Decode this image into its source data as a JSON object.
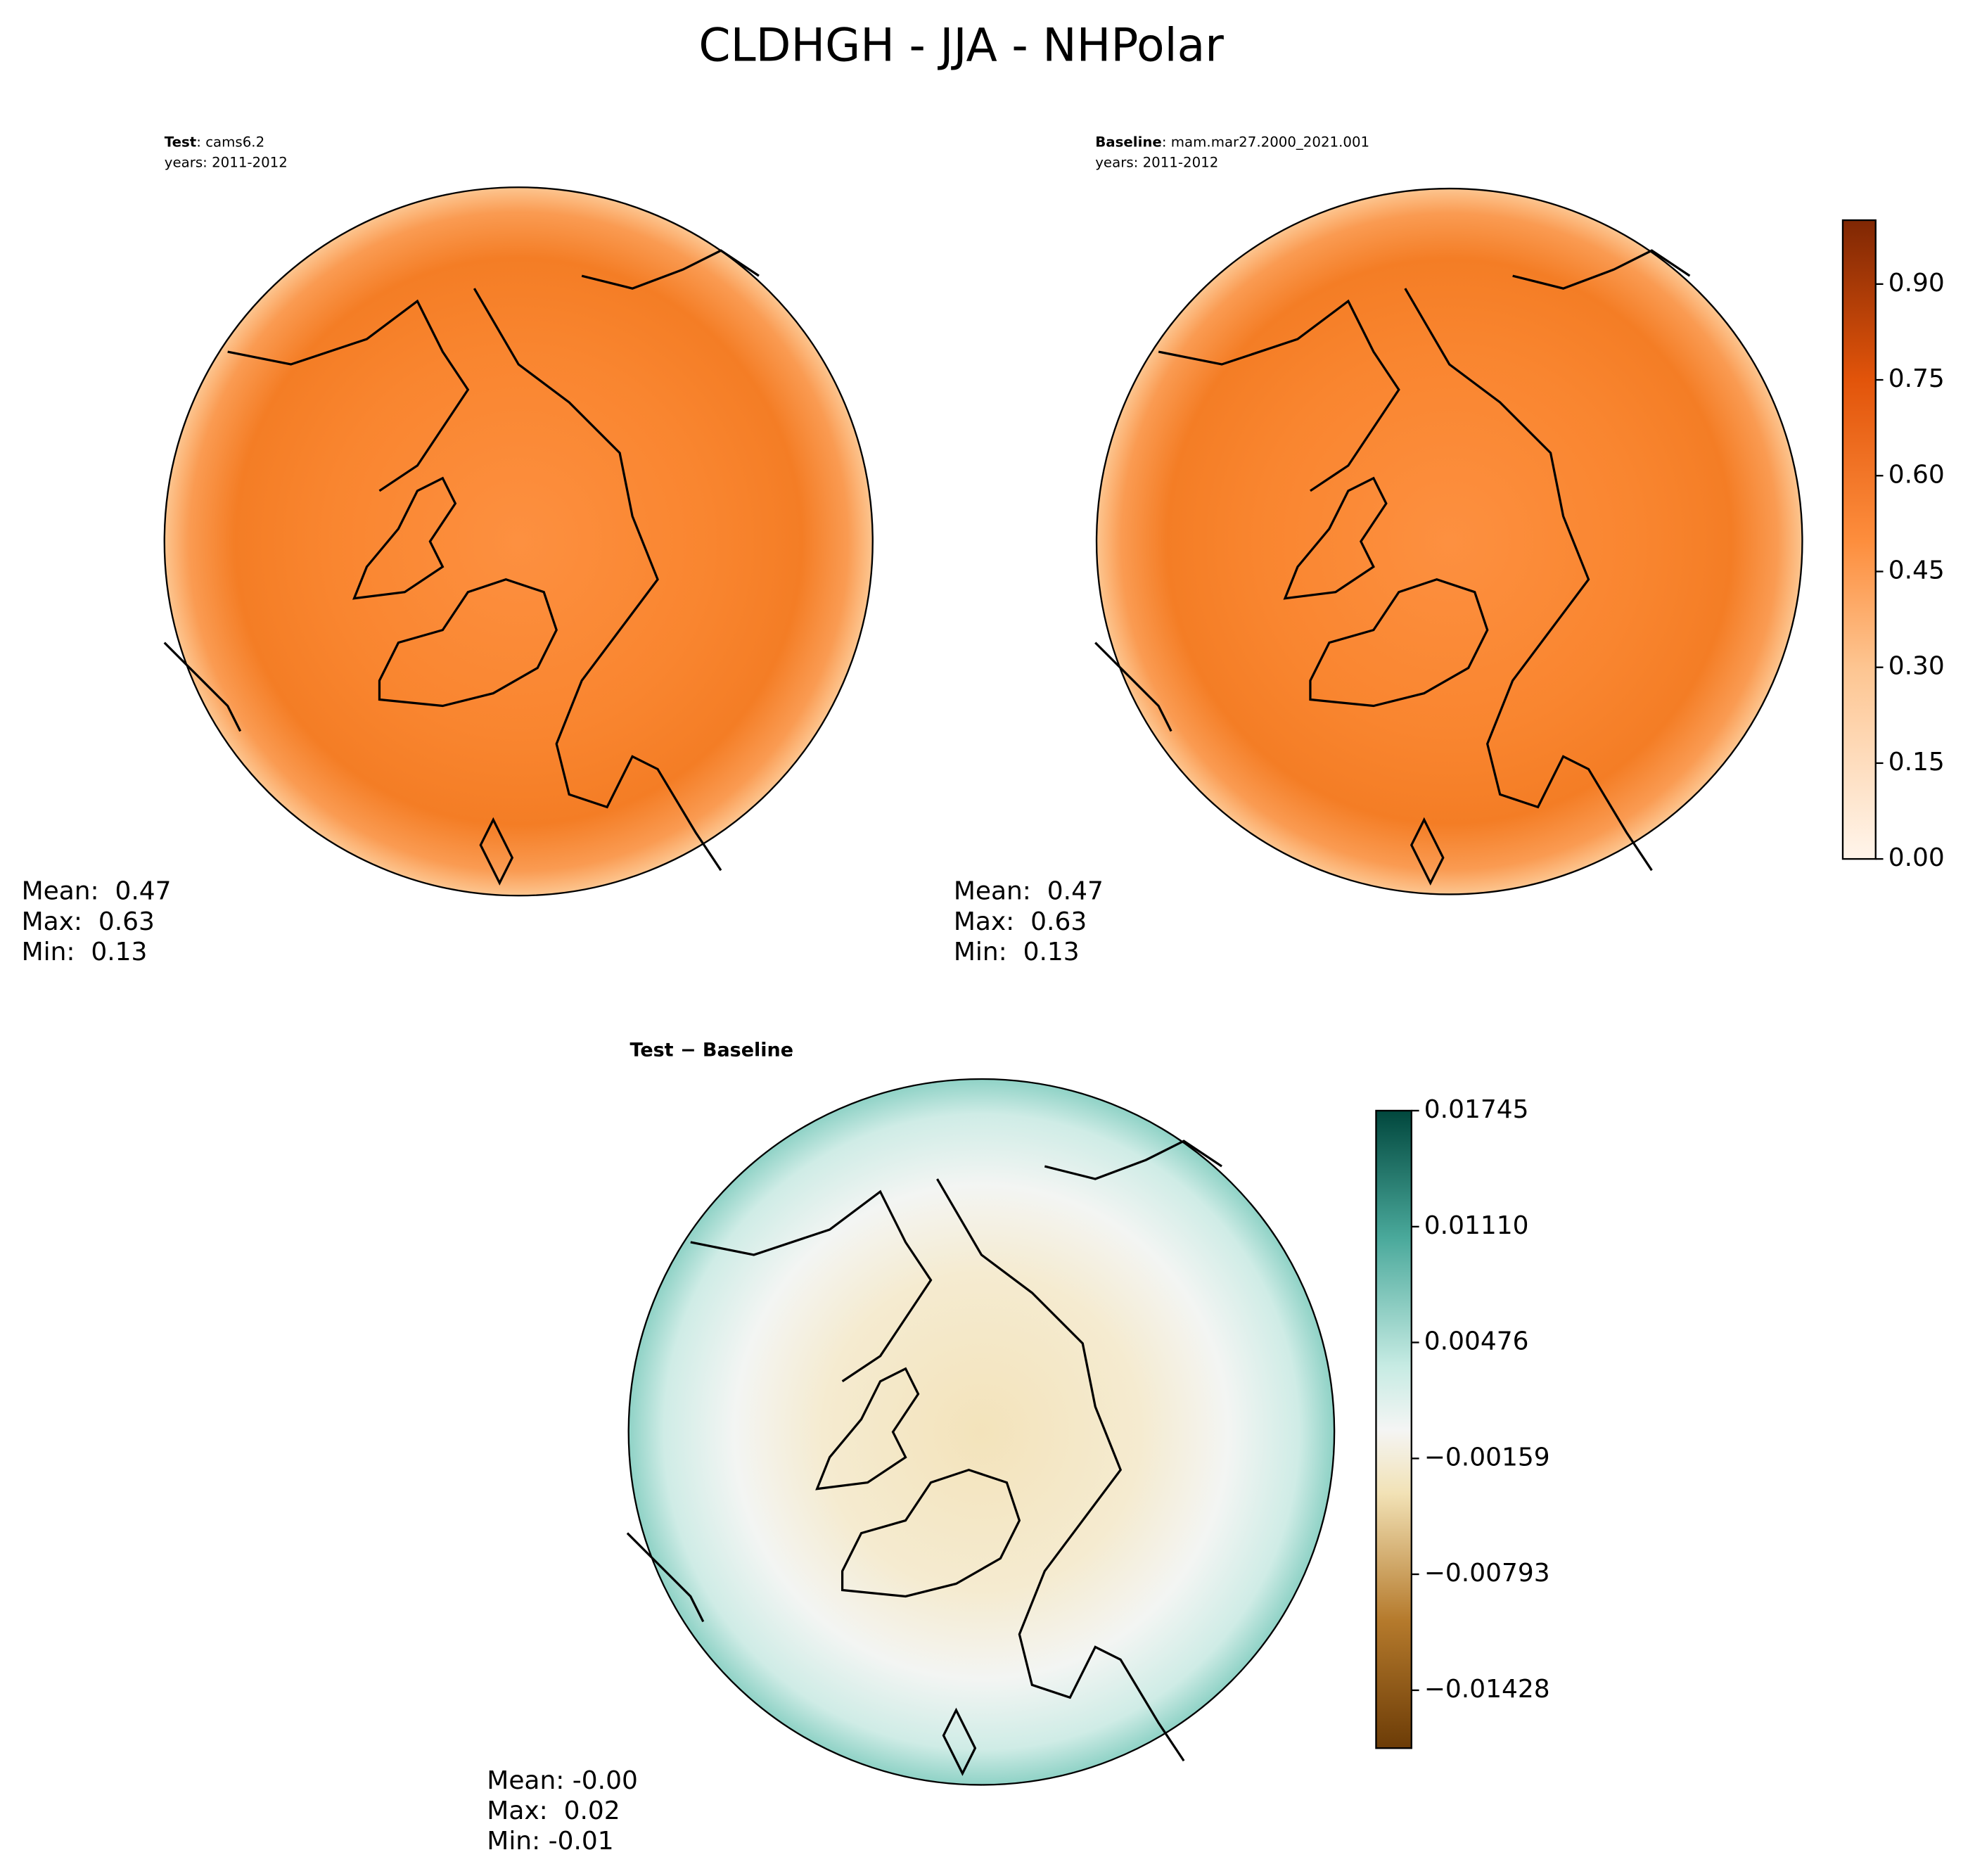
{
  "title": "CLDHGH - JJA - NHPolar",
  "panels": [
    {
      "label_bold": "Test",
      "label": ": cams6.2",
      "years": "years: 2011-2012",
      "stats": [
        "Mean:  0.47",
        "Max:  0.63",
        "Min:  0.13"
      ]
    },
    {
      "label_bold": "Baseline",
      "label": ": mam.mar27.2000_2021.001",
      "years": "years: 2011-2012",
      "stats": [
        "Mean:  0.47",
        "Max:  0.63",
        "Min:  0.13"
      ]
    },
    {
      "label_bold": "Test − Baseline",
      "stats": [
        "Mean: -0.00",
        "Max:  0.02",
        "Min: -0.01"
      ]
    }
  ],
  "colorbars": [
    {
      "lim": [
        0,
        1
      ],
      "ticks": [
        {
          "value": 0,
          "label": "0.00"
        },
        {
          "value": 0.15,
          "label": "0.15"
        },
        {
          "value": 0.3,
          "label": "0.30"
        },
        {
          "value": 0.45,
          "label": "0.45"
        },
        {
          "value": 0.6,
          "label": "0.60"
        },
        {
          "value": 0.75,
          "label": "0.75"
        },
        {
          "value": 0.9,
          "label": "0.90"
        }
      ]
    },
    {
      "lim": [
        -0.01745,
        0.01745
      ],
      "ticks": [
        {
          "value": -0.01428,
          "label": "−0.01428"
        },
        {
          "value": -0.00793,
          "label": "−0.00793"
        },
        {
          "value": -0.00159,
          "label": "−0.00159"
        },
        0.00476,
        {
          "value": 0.0111,
          "label": "0.01110"
        },
        0.01745
      ]
    }
  ]
}
